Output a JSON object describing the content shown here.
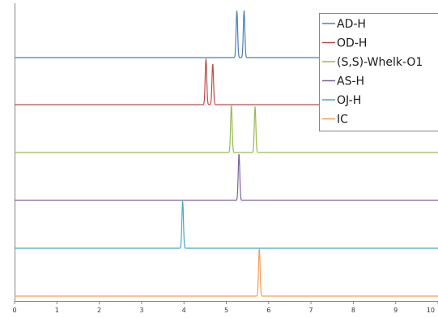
{
  "chart_data": {
    "type": "line",
    "title": "",
    "xlabel": "",
    "ylabel": "",
    "xlim": [
      0,
      10
    ],
    "x_ticks": [
      "0",
      "1",
      "2",
      "3",
      "4",
      "5",
      "6",
      "7",
      "8",
      "9",
      "10"
    ],
    "grid": false,
    "legend_position": "top-right",
    "series": [
      {
        "name": "AD-H",
        "color": "#4a7ebb",
        "peaks": [
          {
            "x": 5.25,
            "height": 0.97
          },
          {
            "x": 5.42,
            "height": 0.97
          }
        ]
      },
      {
        "name": "OD-H",
        "color": "#be4b48",
        "peaks": [
          {
            "x": 4.52,
            "height": 0.95
          },
          {
            "x": 4.68,
            "height": 0.85
          }
        ]
      },
      {
        "name": "(S,S)-Whelk-O1",
        "color": "#98b954",
        "peaks": [
          {
            "x": 5.12,
            "height": 0.98
          },
          {
            "x": 5.68,
            "height": 0.95
          }
        ]
      },
      {
        "name": "AS-H",
        "color": "#7d60a0",
        "peaks": [
          {
            "x": 5.3,
            "height": 0.97
          }
        ]
      },
      {
        "name": "OJ-H",
        "color": "#46aac5",
        "peaks": [
          {
            "x": 3.97,
            "height": 0.98
          }
        ]
      },
      {
        "name": "IC",
        "color": "#f59d56",
        "peaks": [
          {
            "x": 5.78,
            "height": 1.0
          }
        ]
      }
    ]
  }
}
